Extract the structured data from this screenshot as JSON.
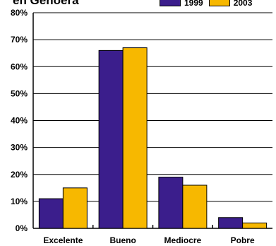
{
  "chart_data": {
    "type": "bar",
    "title": "en Genoera",
    "categories": [
      "Excelente",
      "Bueno",
      "Mediocre",
      "Pobre"
    ],
    "series": [
      {
        "name": "1999",
        "color": "#3b1e8c",
        "values": [
          11,
          66,
          19,
          4
        ]
      },
      {
        "name": "2003",
        "color": "#f7b800",
        "values": [
          15,
          67,
          16,
          2
        ]
      }
    ],
    "ylim": [
      0,
      80
    ],
    "yticks": [
      "0%",
      "10%",
      "20%",
      "30%",
      "40%",
      "50%",
      "60%",
      "70%",
      "80%"
    ],
    "grid": true,
    "legend": "top-right"
  }
}
